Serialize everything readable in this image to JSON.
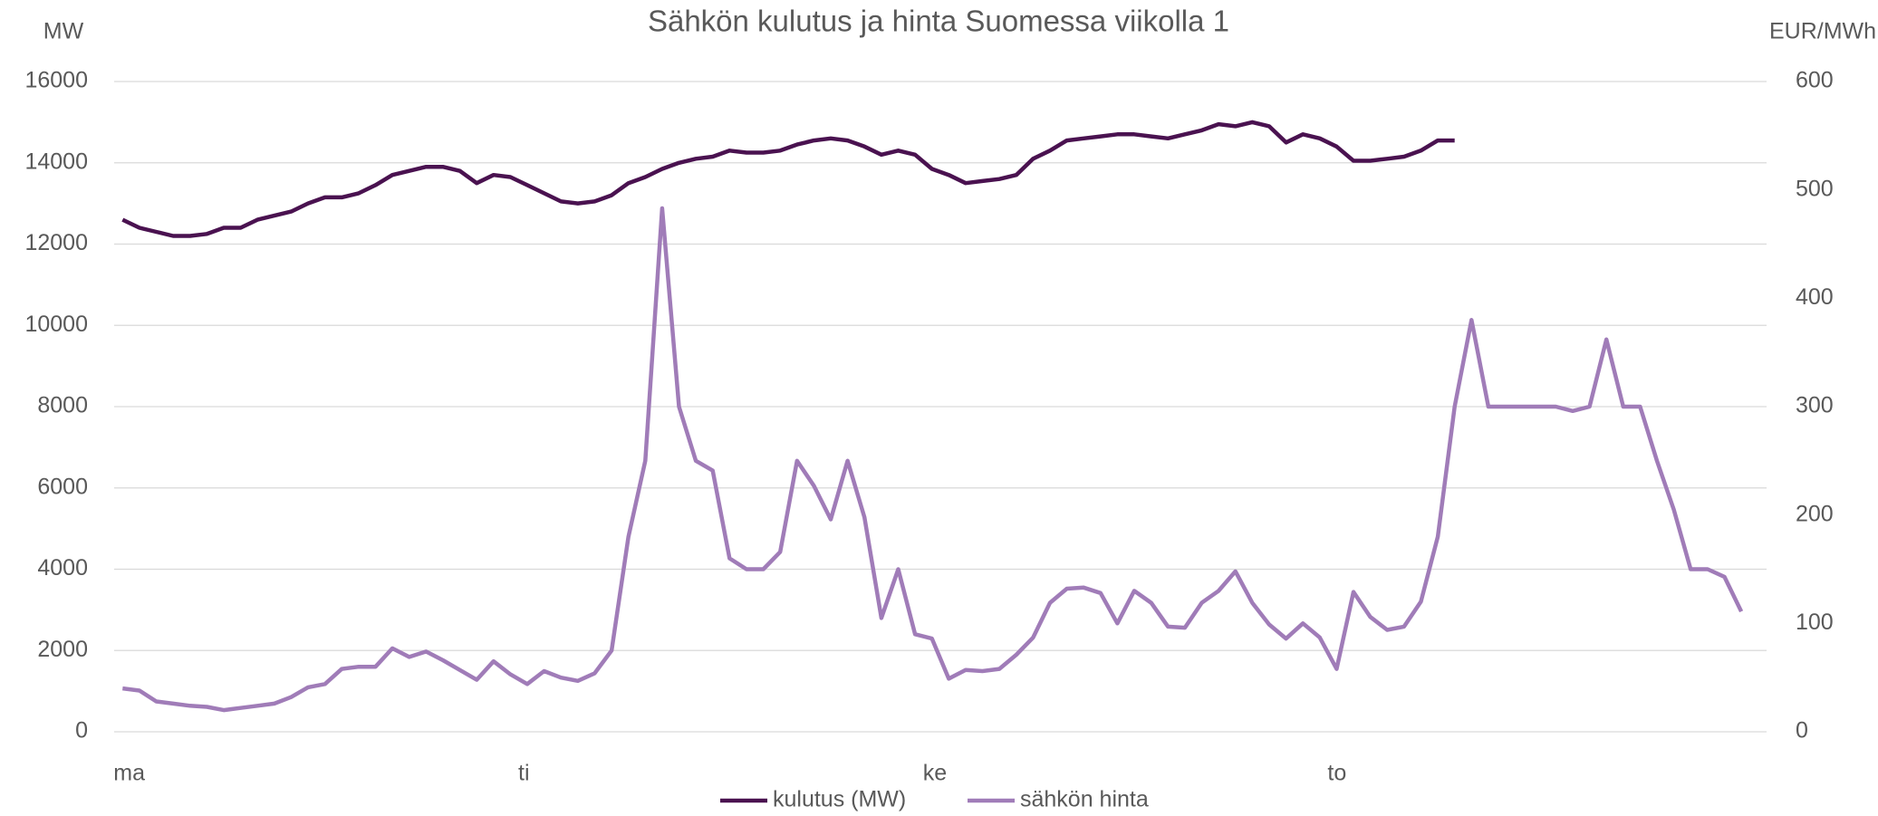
{
  "chart_data": {
    "type": "line",
    "title": "Sähkön kulutus ja hinta Suomessa viikolla 1",
    "y_label": "MW",
    "y2_label": "EUR/MWh",
    "categories": [
      "ma",
      null,
      null,
      null,
      null,
      null,
      null,
      null,
      null,
      null,
      null,
      null,
      null,
      null,
      null,
      null,
      null,
      null,
      null,
      null,
      null,
      null,
      null,
      null,
      "ti",
      null,
      null,
      null,
      null,
      null,
      null,
      null,
      null,
      null,
      null,
      null,
      null,
      null,
      null,
      null,
      null,
      null,
      null,
      null,
      null,
      null,
      null,
      null,
      "ke",
      null,
      null,
      null,
      null,
      null,
      null,
      null,
      null,
      null,
      null,
      null,
      null,
      null,
      null,
      null,
      null,
      null,
      null,
      null,
      null,
      null,
      null,
      null,
      "to",
      null,
      null,
      null,
      null,
      null,
      null,
      null,
      null,
      null,
      null,
      null,
      null,
      null,
      null,
      null,
      null,
      null,
      null,
      null,
      null,
      null,
      null,
      null,
      null,
      null
    ],
    "series": [
      {
        "name": "kulutus (MW)",
        "color": "#4a1250",
        "axis": "y",
        "values": [
          12600,
          12400,
          12300,
          12200,
          12200,
          12250,
          12400,
          12400,
          12600,
          12700,
          12800,
          13000,
          13150,
          13150,
          13250,
          13450,
          13700,
          13800,
          13900,
          13900,
          13800,
          13500,
          13700,
          13650,
          13450,
          13250,
          13050,
          13000,
          13050,
          13200,
          13500,
          13650,
          13850,
          14000,
          14100,
          14150,
          14300,
          14250,
          14250,
          14300,
          14450,
          14550,
          14600,
          14550,
          14400,
          14200,
          14300,
          14200,
          13850,
          13700,
          13500,
          13550,
          13600,
          13700,
          14100,
          14300,
          14550,
          14600,
          14650,
          14700,
          14700,
          14650,
          14600,
          14700,
          14800,
          14950,
          14900,
          15000,
          14900,
          14500,
          14700,
          14600,
          14400,
          14050,
          14050,
          14100,
          14150,
          14300,
          14550,
          14550,
          null,
          null,
          null,
          null,
          null,
          null,
          null,
          null,
          null,
          null,
          null,
          null,
          null,
          null,
          null,
          null,
          null,
          null
        ]
      },
      {
        "name": "sähkön hinta",
        "color": "#a07cb8",
        "axis": "y2",
        "values": [
          40,
          38,
          28,
          26,
          24,
          23,
          20,
          22,
          24,
          26,
          32,
          41,
          44,
          58,
          60,
          60,
          77,
          69,
          74,
          66,
          57,
          48,
          65,
          53,
          44,
          56,
          50,
          47,
          54,
          75,
          180,
          250,
          483,
          300,
          250,
          241,
          160,
          150,
          150,
          166,
          250,
          227,
          196,
          250,
          198,
          105,
          150,
          90,
          86,
          49,
          57,
          56,
          58,
          71,
          87,
          119,
          132,
          133,
          128,
          100,
          130,
          119,
          97,
          96,
          119,
          130,
          148,
          119,
          99,
          86,
          100,
          87,
          58,
          129,
          106,
          94,
          97,
          120,
          180,
          300,
          380,
          300,
          300,
          300,
          300,
          300,
          296,
          300,
          362,
          300,
          300,
          250,
          205,
          150,
          150,
          143,
          111,
          null
        ]
      }
    ],
    "ylim": [
      0,
      16000
    ],
    "yticks": [
      0,
      2000,
      4000,
      6000,
      8000,
      10000,
      12000,
      14000,
      16000
    ],
    "y2lim": [
      0,
      600
    ],
    "y2ticks": [
      0,
      100,
      200,
      300,
      400,
      500,
      600
    ],
    "grid": true,
    "legend": "bottom"
  }
}
